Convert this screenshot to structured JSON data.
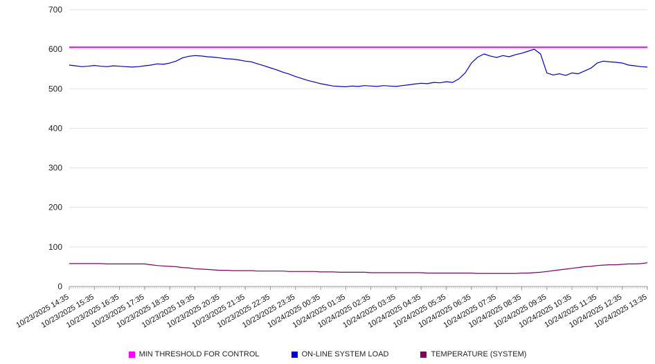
{
  "chart_data": {
    "type": "line",
    "title": "",
    "xlabel": "",
    "ylabel": "",
    "ylim": [
      0,
      700
    ],
    "yticks": [
      0,
      100,
      200,
      300,
      400,
      500,
      600,
      700
    ],
    "grid": "horizontal",
    "legend_position": "bottom",
    "x_labels": [
      "10/23/2025 14:35",
      "10/23/2025 15:35",
      "10/23/2025 16:35",
      "10/23/2025 17:35",
      "10/23/2025 18:35",
      "10/23/2025 19:35",
      "10/23/2025 20:35",
      "10/23/2025 21:35",
      "10/23/2025 22:35",
      "10/23/2025 23:35",
      "10/24/2025 00:35",
      "10/24/2025 01:35",
      "10/24/2025 02:35",
      "10/24/2025 03:35",
      "10/24/2025 04:35",
      "10/24/2025 05:35",
      "10/24/2025 06:35",
      "10/24/2025 07:35",
      "10/24/2025 08:35",
      "10/24/2025 09:35",
      "10/24/2025 10:35",
      "10/24/2025 11:35",
      "10/24/2025 12:35",
      "10/24/2025 13:35"
    ],
    "series": [
      {
        "name": "MIN THRESHOLD FOR CONTROL",
        "color": "#ff00ff",
        "values": [
          605,
          605
        ]
      },
      {
        "name": "ON-LINE SYSTEM LOAD",
        "color": "#0000cc",
        "values": [
          560,
          558,
          556,
          557,
          559,
          557,
          556,
          558,
          557,
          556,
          555,
          556,
          558,
          560,
          563,
          562,
          565,
          570,
          578,
          582,
          584,
          583,
          581,
          580,
          578,
          576,
          575,
          573,
          570,
          568,
          563,
          558,
          553,
          548,
          542,
          537,
          531,
          526,
          521,
          517,
          513,
          510,
          507,
          506,
          505,
          507,
          506,
          508,
          507,
          506,
          508,
          507,
          506,
          508,
          510,
          512,
          514,
          513,
          516,
          515,
          518,
          516,
          525,
          540,
          565,
          580,
          588,
          583,
          579,
          584,
          581,
          586,
          590,
          595,
          600,
          588,
          540,
          535,
          538,
          534,
          540,
          538,
          545,
          552,
          565,
          570,
          568,
          567,
          565,
          560,
          558,
          556,
          555
        ]
      },
      {
        "name": "TEMPERATURE (SYSTEM)",
        "color": "#800060",
        "values": [
          58,
          58,
          58,
          58,
          58,
          58,
          57,
          57,
          57,
          57,
          57,
          57,
          57,
          55,
          53,
          52,
          51,
          50,
          48,
          47,
          45,
          44,
          43,
          42,
          41,
          41,
          40,
          40,
          40,
          40,
          39,
          39,
          39,
          39,
          39,
          38,
          38,
          38,
          38,
          38,
          37,
          37,
          37,
          36,
          36,
          36,
          36,
          36,
          35,
          35,
          35,
          35,
          35,
          35,
          35,
          35,
          35,
          34,
          34,
          34,
          34,
          34,
          34,
          34,
          34,
          33,
          33,
          33,
          33,
          33,
          33,
          33,
          34,
          34,
          35,
          36,
          38,
          40,
          42,
          44,
          46,
          48,
          50,
          51,
          53,
          54,
          55,
          55,
          56,
          57,
          57,
          58,
          60
        ]
      }
    ],
    "colors": {
      "gridline": "#e3e3e3",
      "axis": "#999999",
      "tick": "#aaaaaa",
      "tick_label": "#222222"
    }
  },
  "legend": {
    "items": [
      {
        "label": "MIN THRESHOLD FOR CONTROL"
      },
      {
        "label": "ON-LINE SYSTEM LOAD"
      },
      {
        "label": "TEMPERATURE (SYSTEM)"
      }
    ]
  }
}
